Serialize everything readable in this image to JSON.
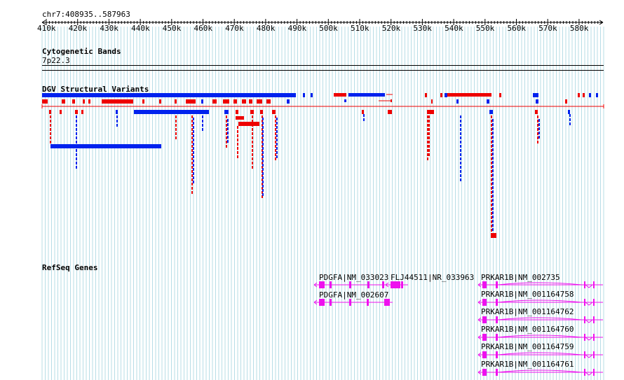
{
  "colors": {
    "grid_line": "#b7dde6",
    "gain": "#ee0000",
    "loss": "#0022ee",
    "gene": "#ee11ee",
    "axis": "#000000"
  },
  "ruler": {
    "position_label": "chr7:408935..587963",
    "ticks": [
      "410k",
      "420k",
      "430k",
      "440k",
      "450k",
      "460k",
      "470k",
      "480k",
      "490k",
      "500k",
      "510k",
      "520k",
      "530k",
      "540k",
      "550k",
      "560k",
      "570k",
      "580k"
    ]
  },
  "cytoband": {
    "title": "Cytogenetic Bands",
    "band_label": "7p22.3"
  },
  "dgv": {
    "title": "DGV Structural Variants"
  },
  "refseq": {
    "title": "RefSeq Genes",
    "genes": [
      {
        "label": "PDGFA|NM_033023"
      },
      {
        "label": "FLJ44511|NR_033963"
      },
      {
        "label": "PDGFA|NM_002607"
      },
      {
        "label": "PRKAR1B|NM_002735"
      },
      {
        "label": "PRKAR1B|NM_001164758"
      },
      {
        "label": "PRKAR1B|NM_001164762"
      },
      {
        "label": "PRKAR1B|NM_001164760"
      },
      {
        "label": "PRKAR1B|NM_001164759"
      },
      {
        "label": "PRKAR1B|NM_001164761"
      }
    ]
  }
}
